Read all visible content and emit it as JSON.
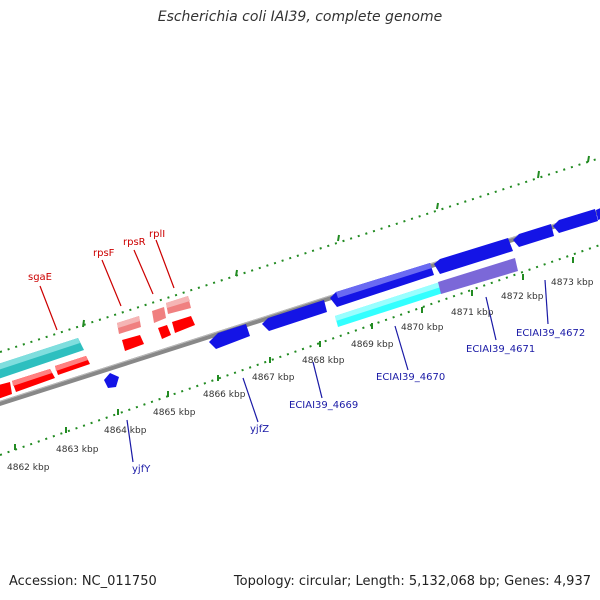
{
  "title": "Escherichia coli IAI39, complete genome",
  "footer": {
    "accession": "Accession: NC_011750",
    "stats": "Topology: circular; Length: 5,132,068 bp; Genes: 4,937"
  },
  "colors": {
    "backbone": "#8a8a8a",
    "tick_green": "#228b22",
    "forward_red": "#ff0000",
    "forward_red_light": "#f08080",
    "teal": "#2ebfbf",
    "blue": "#1414e6",
    "cyan": "#33ffff",
    "purple": "#7b68d8",
    "label_red": "#cc0000",
    "label_blue": "#1a1aa6"
  },
  "ruler_labels": [
    "4862 kbp",
    "4863 kbp",
    "4864 kbp",
    "4865 kbp",
    "4866 kbp",
    "4867 kbp",
    "4868 kbp",
    "4869 kbp",
    "4870 kbp",
    "4871 kbp",
    "4872 kbp",
    "4873 kbp"
  ],
  "gene_labels": {
    "sgaE": "sgaE",
    "rpsF": "rpsF",
    "rpsR": "rpsR",
    "rplI": "rplI",
    "yjfY": "yjfY",
    "yjfZ": "yjfZ",
    "ECIAI39_4669": "ECIAI39_4669",
    "ECIAI39_4670": "ECIAI39_4670",
    "ECIAI39_4671": "ECIAI39_4671",
    "ECIAI39_4672": "ECIAI39_4672"
  }
}
